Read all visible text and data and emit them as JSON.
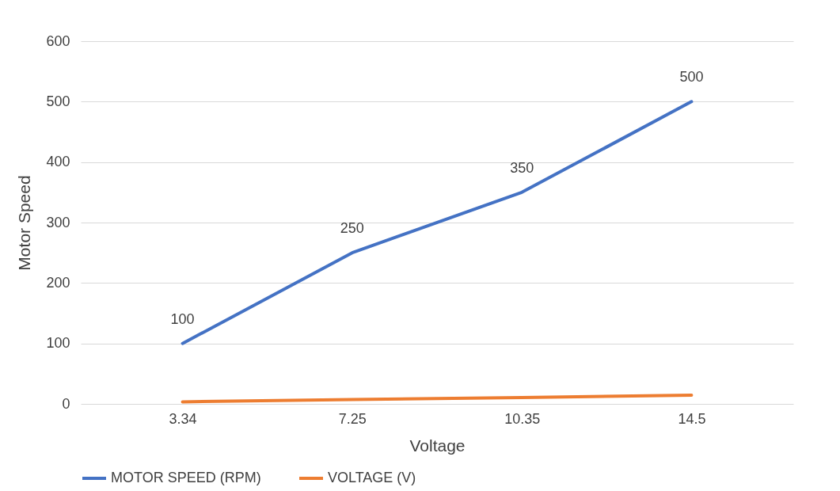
{
  "chart_data": {
    "type": "line",
    "xlabel": "Voltage",
    "ylabel": "Motor Speed",
    "categories": [
      "3.34",
      "7.25",
      "10.35",
      "14.5"
    ],
    "series": [
      {
        "name": "MOTOR SPEED (RPM)",
        "color": "#4472c4",
        "values": [
          100,
          250,
          350,
          500
        ],
        "value_labels": [
          "100",
          "250",
          "350",
          "500"
        ]
      },
      {
        "name": "VOLTAGE (V)",
        "color": "#ed7d31",
        "values": [
          3.34,
          7.25,
          10.35,
          14.5
        ]
      }
    ],
    "ylim": [
      0,
      600
    ],
    "yticks": [
      0,
      100,
      200,
      300,
      400,
      500,
      600
    ],
    "grid": "y",
    "legend": "bottom",
    "marker": "none",
    "line_style": "solid"
  }
}
